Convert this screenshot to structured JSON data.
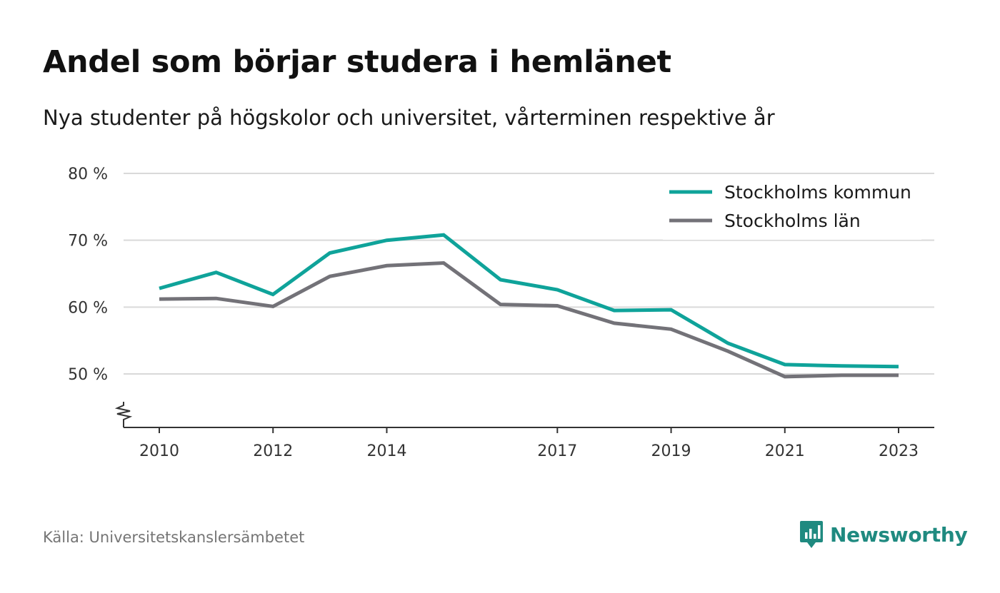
{
  "title": "Andel som börjar studera i hemlänet",
  "subtitle": "Nya studenter på högskolor och universitet, vårterminen respektive år",
  "source": "Källa: Universitetskanslersämbetet",
  "brand": {
    "name": "Newsworthy",
    "icon": "newsworthy-logo-icon",
    "color": "#1f8a80"
  },
  "chart_data": {
    "type": "line",
    "title": "Andel som börjar studera i hemlänet",
    "subtitle": "Nya studenter på högskolor och universitet, vårterminen respektive år",
    "xlabel": "",
    "ylabel": "",
    "x": [
      2010,
      2011,
      2012,
      2013,
      2014,
      2015,
      2016,
      2017,
      2018,
      2019,
      2020,
      2021,
      2022,
      2023
    ],
    "x_ticks": [
      2010,
      2012,
      2014,
      2017,
      2019,
      2021,
      2023
    ],
    "y_ticks": [
      50,
      60,
      70,
      80
    ],
    "y_tick_labels": [
      "50 %",
      "60 %",
      "70 %",
      "80 %"
    ],
    "ylim": [
      42,
      80
    ],
    "y_axis_break": true,
    "grid": true,
    "legend_position": "top-right",
    "series": [
      {
        "name": "Stockholms kommun",
        "color": "#0fa39a",
        "values": [
          62.8,
          65.2,
          61.9,
          68.1,
          70.0,
          70.8,
          64.1,
          62.6,
          59.5,
          59.6,
          54.6,
          51.4,
          51.2,
          51.1
        ]
      },
      {
        "name": "Stockholms län",
        "color": "#737278",
        "values": [
          61.2,
          61.3,
          60.1,
          64.6,
          66.2,
          66.6,
          60.4,
          60.2,
          57.6,
          56.7,
          53.4,
          49.6,
          49.8,
          49.8
        ]
      }
    ]
  }
}
